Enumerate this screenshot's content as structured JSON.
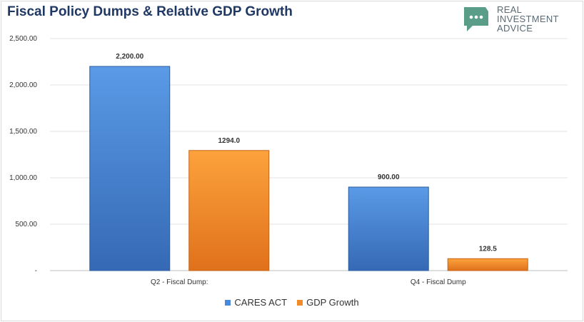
{
  "title": "Fiscal Policy Dumps & Relative GDP Growth",
  "logo": {
    "lines": [
      "REAL",
      "INVESTMENT",
      "ADVICE"
    ],
    "icon": "speech-bubble-dots-icon",
    "color": "#5a9e8a"
  },
  "chart_data": {
    "type": "bar",
    "categories": [
      "Q2 - Fiscal Dump:",
      "Q4 - Fiscal Dump"
    ],
    "series": [
      {
        "name": "CARES ACT",
        "values": [
          2200,
          900
        ],
        "labels": [
          "2,200.00",
          "900.00"
        ],
        "color": "#4a89dc"
      },
      {
        "name": "GDP Growth",
        "values": [
          1294.0,
          128.5
        ],
        "labels": [
          "1294.0",
          "128.5"
        ],
        "color": "#f28c28"
      }
    ],
    "y_ticks": [
      0,
      500,
      1000,
      1500,
      2000,
      2500
    ],
    "y_tick_labels": [
      "-",
      "500.00",
      "1,000.00",
      "1,500.00",
      "2,000.00",
      "2,500.00"
    ],
    "ylim": [
      0,
      2500
    ],
    "grid": true,
    "legend_position": "bottom"
  }
}
